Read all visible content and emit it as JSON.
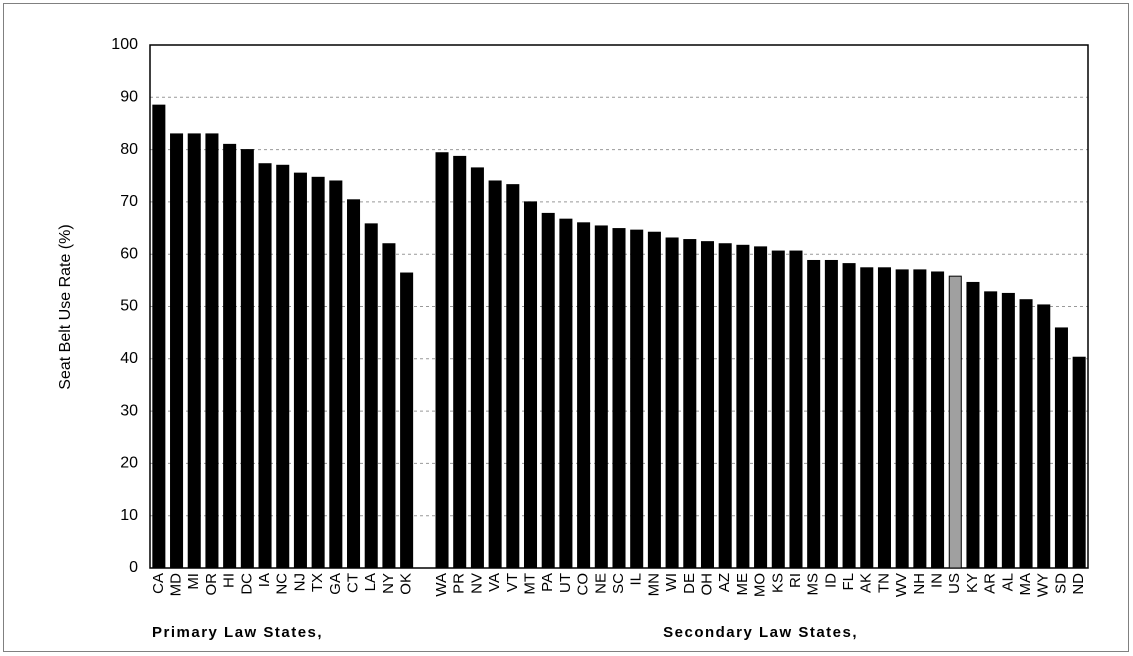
{
  "chart_data": {
    "type": "bar",
    "ylabel": "Seat Belt Use Rate (%)",
    "ylim": [
      0,
      100
    ],
    "yticks": [
      0,
      10,
      20,
      30,
      40,
      50,
      60,
      70,
      80,
      90,
      100
    ],
    "grid": true,
    "groups": [
      {
        "name": "Primary Law States,",
        "categories": [
          "CA",
          "MD",
          "MI",
          "OR",
          "HI",
          "DC",
          "IA",
          "NC",
          "NJ",
          "TX",
          "GA",
          "CT",
          "LA",
          "NY",
          "OK"
        ],
        "values": [
          88.5,
          83,
          83,
          83,
          81,
          80,
          77.3,
          77,
          75.5,
          74.7,
          74,
          70.4,
          65.8,
          62,
          56.4
        ],
        "colors": [
          "#000000",
          "#000000",
          "#000000",
          "#000000",
          "#000000",
          "#000000",
          "#000000",
          "#000000",
          "#000000",
          "#000000",
          "#000000",
          "#000000",
          "#000000",
          "#000000",
          "#000000"
        ]
      },
      {
        "name": "Secondary Law States,",
        "categories": [
          "WA",
          "PR",
          "NV",
          "VA",
          "VT",
          "MT",
          "PA",
          "UT",
          "CO",
          "NE",
          "SC",
          "IL",
          "MN",
          "WI",
          "DE",
          "OH",
          "AZ",
          "ME",
          "MO",
          "KS",
          "RI",
          "MS",
          "ID",
          "FL",
          "AK",
          "TN",
          "WV",
          "NH",
          "IN",
          "US",
          "KY",
          "AR",
          "AL",
          "MA",
          "WY",
          "SD",
          "ND"
        ],
        "values": [
          79.4,
          78.7,
          76.5,
          74,
          73.3,
          70,
          67.8,
          66.7,
          66,
          65.4,
          64.9,
          64.6,
          64.2,
          63.1,
          62.8,
          62.4,
          62,
          61.7,
          61.4,
          60.6,
          60.6,
          58.8,
          58.8,
          58.2,
          57.4,
          57.4,
          57,
          57,
          56.6,
          55.8,
          54.6,
          52.8,
          52.5,
          51.3,
          50.3,
          45.9,
          40.3
        ],
        "colors": [
          "#000000",
          "#000000",
          "#000000",
          "#000000",
          "#000000",
          "#000000",
          "#000000",
          "#000000",
          "#000000",
          "#000000",
          "#000000",
          "#000000",
          "#000000",
          "#000000",
          "#000000",
          "#000000",
          "#000000",
          "#000000",
          "#000000",
          "#000000",
          "#000000",
          "#000000",
          "#000000",
          "#000000",
          "#000000",
          "#000000",
          "#000000",
          "#000000",
          "#000000",
          "#a0a0a0",
          "#000000",
          "#000000",
          "#000000",
          "#000000",
          "#000000",
          "#000000",
          "#000000"
        ]
      }
    ]
  }
}
